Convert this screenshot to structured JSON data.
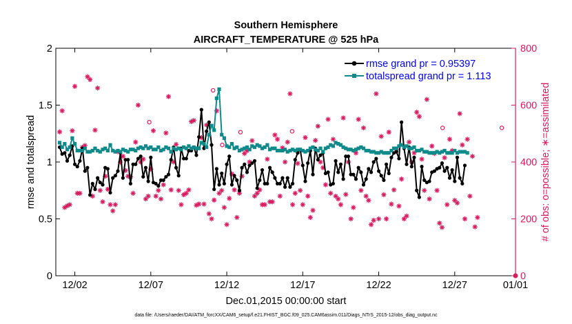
{
  "chart_data": {
    "type": "line",
    "title": "Southern Hemisphere",
    "subtitle": "AIRCRAFT_TEMPERATURE @ 525 hPa",
    "xlabel": "Dec.01,2015 00:00:00 start",
    "ylabel": "rmse and totalspread",
    "y2label": "# of obs: o=possible; ∗=assimilated",
    "footnote": "data file: /Users/raeder/DAI/ATM_forcXX/CAM6_setup/f.e21.FHIST_BGC.f09_025.CAM6assim.011/Diags_NTrS_2015-12/obs_diag_output.nc",
    "xlim": [
      0.75,
      31.0
    ],
    "ylim": [
      0,
      2
    ],
    "y2lim": [
      0,
      800
    ],
    "x_ticks": [
      2,
      7,
      12,
      17,
      22,
      27,
      32
    ],
    "x_tick_labels": [
      "12/02",
      "12/07",
      "12/12",
      "12/17",
      "12/22",
      "12/27",
      "01/01"
    ],
    "y_ticks": [
      0,
      0.5,
      1,
      1.5,
      2
    ],
    "y_tick_labels": [
      "0",
      "0.5",
      "1",
      "1.5",
      "2"
    ],
    "y2_ticks": [
      0,
      200,
      400,
      600,
      800
    ],
    "y2_tick_labels": [
      "0",
      "200",
      "400",
      "600",
      "800"
    ],
    "legend_position": "top-right",
    "series": [
      {
        "name": "rmse grand pr = 0.95397",
        "color": "#000000",
        "axis": "left",
        "values": [
          1.13,
          1.07,
          1.08,
          1.01,
          1.06,
          1.14,
          0.98,
          0.96,
          1.01,
          1.12,
          0.92,
          0.95,
          0.71,
          0.81,
          0.76,
          0.86,
          0.82,
          0.8,
          0.95,
          0.94,
          0.73,
          0.86,
          0.88,
          0.92,
          1.08,
          0.86,
          1.02,
          1.02,
          0.81,
          0.98,
          0.98,
          1.03,
          1.05,
          0.87,
          0.95,
          0.83,
          1.04,
          0.82,
          0.81,
          0.79,
          0.84,
          0.84,
          0.87,
          0.89,
          1.02,
          1.13,
          0.95,
          0.88,
          1.12,
          1.03,
          1.03,
          1.1,
          1.1,
          1.13,
          1.06,
          1.22,
          1.46,
          1.12,
          1.27,
          1.35,
          1.15,
          0.76,
          0.94,
          0.8,
          0.9,
          0.81,
          0.98,
          1.05,
          0.8,
          0.88,
          0.84,
          0.75,
          0.95,
          0.98,
          0.91,
          0.97,
          0.99,
          1.01,
          0.77,
          0.84,
          0.93,
          0.81,
          0.81,
          0.95,
          0.91,
          0.86,
          0.81,
          0.81,
          0.86,
          0.78,
          0.86,
          0.78,
          0.81,
          1.02,
          1.08,
          1.11,
          0.97,
          0.83,
          0.99,
          1.1,
          0.89,
          1.12,
          1.02,
          1.06,
          1.08,
          0.9,
          0.91,
          0.8,
          0.81,
          1.01,
          0.91,
          0.98,
          0.85,
          1.05,
          1.05,
          0.89,
          0.89,
          0.85,
          0.95,
          0.91,
          0.8,
          0.85,
          0.94,
          0.91,
          1.0,
          1.03,
          0.92,
          0.88,
          0.84,
          0.98,
          0.9,
          1.04,
          1.08,
          1.09,
          1.03,
          1.35,
          1.12,
          0.98,
          1.13,
          0.96,
          1.04,
          0.75,
          0.69,
          0.96,
          0.84,
          0.82,
          0.83,
          0.91,
          0.92,
          0.94,
          0.95,
          0.99,
          0.92,
          0.95,
          0.86,
          0.93,
          0.83,
          1.04,
          0.86,
          0.81,
          0.97
        ]
      },
      {
        "name": "totalspread grand pr = 1.113",
        "color": "#0f8a8a",
        "axis": "left",
        "values": [
          1.17,
          1.13,
          1.16,
          1.11,
          1.13,
          1.21,
          1.16,
          1.1,
          1.1,
          1.1,
          1.12,
          1.09,
          1.09,
          1.1,
          1.12,
          1.1,
          1.09,
          1.11,
          1.12,
          1.1,
          1.15,
          1.1,
          1.09,
          1.1,
          1.09,
          1.11,
          1.1,
          1.09,
          1.11,
          1.11,
          1.1,
          1.12,
          1.13,
          1.12,
          1.14,
          1.12,
          1.13,
          1.11,
          1.11,
          1.13,
          1.1,
          1.11,
          1.13,
          1.12,
          1.09,
          1.12,
          1.11,
          1.12,
          1.11,
          1.13,
          1.12,
          1.14,
          1.12,
          1.13,
          1.12,
          1.12,
          1.17,
          1.16,
          1.13,
          1.24,
          1.32,
          1.28,
          1.56,
          1.64,
          1.24,
          1.21,
          1.14,
          1.13,
          1.16,
          1.12,
          1.13,
          1.1,
          1.11,
          1.12,
          1.13,
          1.11,
          1.14,
          1.13,
          1.15,
          1.14,
          1.12,
          1.13,
          1.15,
          1.11,
          1.12,
          1.12,
          1.1,
          1.1,
          1.1,
          1.11,
          1.09,
          1.1,
          1.11,
          1.1,
          1.11,
          1.11,
          1.1,
          1.09,
          1.1,
          1.12,
          1.13,
          1.11,
          1.1,
          1.12,
          1.09,
          1.12,
          1.13,
          1.15,
          1.14,
          1.17,
          1.16,
          1.15,
          1.13,
          1.12,
          1.11,
          1.11,
          1.1,
          1.11,
          1.12,
          1.13,
          1.12,
          1.1,
          1.1,
          1.09,
          1.09,
          1.08,
          1.08,
          1.09,
          1.08,
          1.08,
          1.08,
          1.1,
          1.12,
          1.12,
          1.14,
          1.15,
          1.13,
          1.14,
          1.12,
          1.12,
          1.13,
          1.1,
          1.1,
          1.11,
          1.09,
          1.09,
          1.08,
          1.08,
          1.08,
          1.09,
          1.08,
          1.09,
          1.1,
          1.08,
          1.08,
          1.08,
          1.1,
          1.08,
          1.09,
          1.09,
          1.09,
          1.08
        ]
      }
    ],
    "obs_assimilated": {
      "axis": "right",
      "color": "#d81b60",
      "values": [
        506,
        580,
        240,
        246,
        250,
        510,
        666,
        290,
        290,
        452,
        458,
        700,
        690,
        280,
        512,
        660,
        300,
        260,
        350,
        304,
        250,
        228,
        250,
        436,
        400,
        420,
        370,
        350,
        348,
        290,
        470,
        600,
        400,
        410,
        270,
        280,
        375,
        510,
        280,
        300,
        270,
        320,
        502,
        630,
        302,
        400,
        462,
        300,
        250,
        285,
        290,
        302,
        542,
        546,
        248,
        252,
        486,
        252,
        530,
        218,
        200,
        266,
        580,
        290,
        300,
        240,
        180,
        272,
        358,
        302,
        205,
        290,
        350,
        430,
        440,
        400,
        475,
        280,
        290,
        302,
        250,
        250,
        410,
        260,
        260,
        495,
        480,
        280,
        450,
        400,
        470,
        640,
        250,
        290,
        395,
        300,
        250,
        486,
        280,
        205,
        230,
        476,
        526,
        400,
        380,
        320,
        550,
        290,
        480,
        280,
        270,
        250,
        555,
        286,
        400,
        200,
        240,
        432,
        550,
        300,
        520,
        280,
        265,
        180,
        195,
        640,
        200,
        490,
        285,
        200,
        505,
        252,
        302,
        445,
        245,
        340,
        200,
        210,
        470,
        400,
        432,
        575,
        560,
        410,
        300,
        620,
        270,
        456,
        430,
        300,
        185,
        170,
        415,
        250,
        480,
        440,
        265,
        256,
        570,
        460,
        200,
        480,
        280,
        420,
        172,
        205
      ]
    },
    "obs_possible": {
      "axis": "right",
      "color": "#d81b60",
      "points": [
        [
          6.9,
          540
        ],
        [
          11.1,
          652
        ],
        [
          11.7,
          460
        ],
        [
          12.9,
          505
        ],
        [
          16.3,
          508
        ],
        [
          26.2,
          520
        ],
        [
          30.1,
          520
        ]
      ]
    }
  }
}
